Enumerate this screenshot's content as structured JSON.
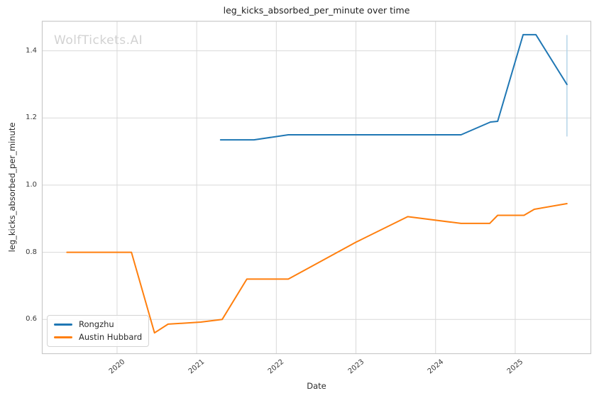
{
  "title": "leg_kicks_absorbed_per_minute over time",
  "watermark": "WolfTickets.AI",
  "xlabel": "Date",
  "ylabel": "leg_kicks_absorbed_per_minute",
  "legend": [
    {
      "label": "Rongzhu",
      "color": "#1f77b4"
    },
    {
      "label": "Austin Hubbard",
      "color": "#ff7f0e"
    }
  ],
  "chart_data": {
    "type": "line",
    "title": "leg_kicks_absorbed_per_minute over time",
    "xlabel": "Date",
    "ylabel": "leg_kicks_absorbed_per_minute",
    "grid": true,
    "legend_position": "lower-left",
    "xlim": [
      2019.06,
      2025.95
    ],
    "ylim": [
      0.498,
      1.488
    ],
    "x_ticks": [
      2020,
      2021,
      2022,
      2023,
      2024,
      2025
    ],
    "x_tick_labels": [
      "2020",
      "2021",
      "2022",
      "2023",
      "2024",
      "2025"
    ],
    "y_ticks": [
      0.6,
      0.8,
      1.0,
      1.2,
      1.4
    ],
    "y_tick_labels": [
      "0.6",
      "0.8",
      "1.0",
      "1.2",
      "1.4"
    ],
    "series": [
      {
        "name": "Rongzhu",
        "color": "#1f77b4",
        "points": [
          [
            2021.3,
            1.135
          ],
          [
            2021.72,
            1.135
          ],
          [
            2022.15,
            1.15
          ],
          [
            2024.32,
            1.15
          ],
          [
            2024.69,
            1.188
          ],
          [
            2024.78,
            1.19
          ],
          [
            2025.1,
            1.448
          ],
          [
            2025.26,
            1.448
          ],
          [
            2025.65,
            1.3
          ]
        ]
      },
      {
        "name": "Austin Hubbard",
        "color": "#ff7f0e",
        "points": [
          [
            2019.37,
            0.8
          ],
          [
            2020.18,
            0.8
          ],
          [
            2020.47,
            0.56
          ],
          [
            2020.64,
            0.586
          ],
          [
            2021.05,
            0.592
          ],
          [
            2021.32,
            0.6
          ],
          [
            2021.63,
            0.72
          ],
          [
            2022.15,
            0.72
          ],
          [
            2023.0,
            0.83
          ],
          [
            2023.65,
            0.906
          ],
          [
            2024.32,
            0.886
          ],
          [
            2024.68,
            0.886
          ],
          [
            2024.78,
            0.91
          ],
          [
            2025.11,
            0.91
          ],
          [
            2025.24,
            0.928
          ],
          [
            2025.65,
            0.945
          ]
        ]
      }
    ],
    "error_bar": {
      "x": 2025.65,
      "y_low": 1.145,
      "y_high": 1.447,
      "color": "#b5d5e8"
    }
  }
}
